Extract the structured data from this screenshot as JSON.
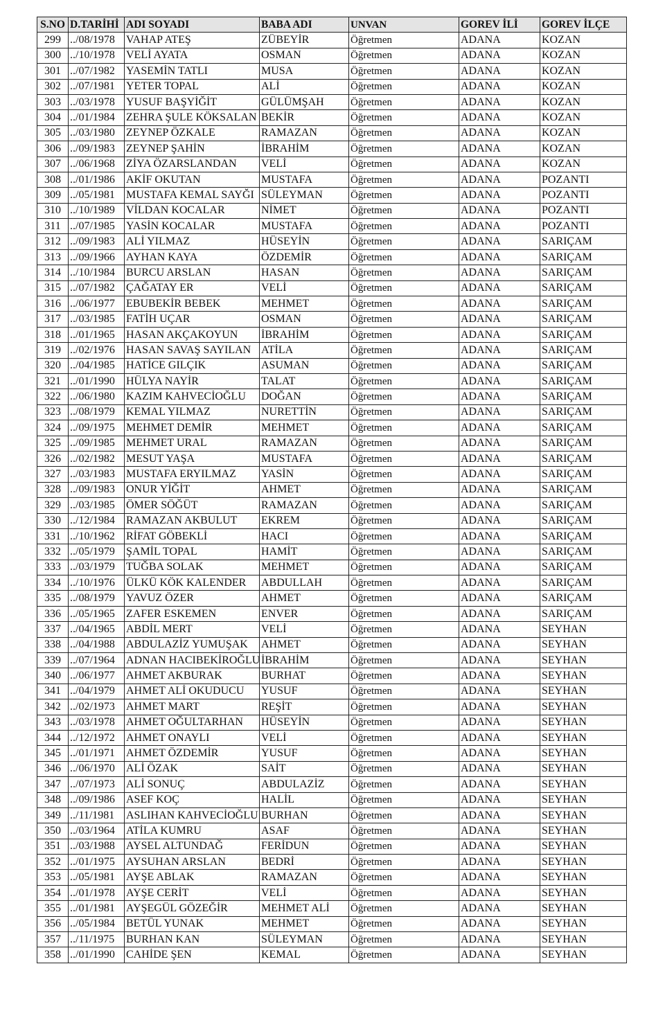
{
  "headers": [
    "S.NO",
    "D.TARİHİ",
    "ADI SOYADI",
    "BABA ADI",
    "UNVAN",
    "GOREV İLİ",
    "GOREV İLÇE"
  ],
  "rows": [
    [
      "299",
      "../08/1978",
      "VAHAP ATEŞ",
      "ZÜBEYİR",
      "Öğretmen",
      "ADANA",
      "KOZAN"
    ],
    [
      "300",
      "../10/1978",
      "VELİ AYATA",
      "OSMAN",
      "Öğretmen",
      "ADANA",
      "KOZAN"
    ],
    [
      "301",
      "../07/1982",
      "YASEMİN TATLI",
      "MUSA",
      "Öğretmen",
      "ADANA",
      "KOZAN"
    ],
    [
      "302",
      "../07/1981",
      "YETER TOPAL",
      "ALİ",
      "Öğretmen",
      "ADANA",
      "KOZAN"
    ],
    [
      "303",
      "../03/1978",
      "YUSUF BAŞYİĞİT",
      "GÜLÜMŞAH",
      "Öğretmen",
      "ADANA",
      "KOZAN"
    ],
    [
      "304",
      "../01/1984",
      "ZEHRA ŞULE KÖKSALAN",
      "BEKİR",
      "Öğretmen",
      "ADANA",
      "KOZAN"
    ],
    [
      "305",
      "../03/1980",
      "ZEYNEP ÖZKALE",
      "RAMAZAN",
      "Öğretmen",
      "ADANA",
      "KOZAN"
    ],
    [
      "306",
      "../09/1983",
      "ZEYNEP ŞAHİN",
      "İBRAHİM",
      "Öğretmen",
      "ADANA",
      "KOZAN"
    ],
    [
      "307",
      "../06/1968",
      "ZİYA ÖZARSLANDAN",
      "VELİ",
      "Öğretmen",
      "ADANA",
      "KOZAN"
    ],
    [
      "308",
      "../01/1986",
      "AKİF OKUTAN",
      "MUSTAFA",
      "Öğretmen",
      "ADANA",
      "POZANTI"
    ],
    [
      "309",
      "../05/1981",
      "MUSTAFA KEMAL SAYĞI",
      "SÜLEYMAN",
      "Öğretmen",
      "ADANA",
      "POZANTI"
    ],
    [
      "310",
      "../10/1989",
      "VİLDAN KOCALAR",
      "NİMET",
      "Öğretmen",
      "ADANA",
      "POZANTI"
    ],
    [
      "311",
      "../07/1985",
      "YASİN KOCALAR",
      "MUSTAFA",
      "Öğretmen",
      "ADANA",
      "POZANTI"
    ],
    [
      "312",
      "../09/1983",
      "ALİ YILMAZ",
      "HÜSEYİN",
      "Öğretmen",
      "ADANA",
      "SARIÇAM"
    ],
    [
      "313",
      "../09/1966",
      "AYHAN KAYA",
      "ÖZDEMİR",
      "Öğretmen",
      "ADANA",
      "SARIÇAM"
    ],
    [
      "314",
      "../10/1984",
      "BURCU ARSLAN",
      "HASAN",
      "Öğretmen",
      "ADANA",
      "SARIÇAM"
    ],
    [
      "315",
      "../07/1982",
      "ÇAĞATAY ER",
      "VELİ",
      "Öğretmen",
      "ADANA",
      "SARIÇAM"
    ],
    [
      "316",
      "../06/1977",
      "EBUBEKİR BEBEK",
      "MEHMET",
      "Öğretmen",
      "ADANA",
      "SARIÇAM"
    ],
    [
      "317",
      "../03/1985",
      "FATİH UÇAR",
      "OSMAN",
      "Öğretmen",
      "ADANA",
      "SARIÇAM"
    ],
    [
      "318",
      "../01/1965",
      "HASAN AKÇAKOYUN",
      "İBRAHİM",
      "Öğretmen",
      "ADANA",
      "SARIÇAM"
    ],
    [
      "319",
      "../02/1976",
      "HASAN SAVAŞ SAYILAN",
      "ATİLA",
      "Öğretmen",
      "ADANA",
      "SARIÇAM"
    ],
    [
      "320",
      "../04/1985",
      "HATİCE GILÇIK",
      "ASUMAN",
      "Öğretmen",
      "ADANA",
      "SARIÇAM"
    ],
    [
      "321",
      "../01/1990",
      "HÜLYA NAYİR",
      "TALAT",
      "Öğretmen",
      "ADANA",
      "SARIÇAM"
    ],
    [
      "322",
      "../06/1980",
      "KAZIM KAHVECİOĞLU",
      "DOĞAN",
      "Öğretmen",
      "ADANA",
      "SARIÇAM"
    ],
    [
      "323",
      "../08/1979",
      "KEMAL YILMAZ",
      "NURETTİN",
      "Öğretmen",
      "ADANA",
      "SARIÇAM"
    ],
    [
      "324",
      "../09/1975",
      "MEHMET DEMİR",
      "MEHMET",
      "Öğretmen",
      "ADANA",
      "SARIÇAM"
    ],
    [
      "325",
      "../09/1985",
      "MEHMET URAL",
      "RAMAZAN",
      "Öğretmen",
      "ADANA",
      "SARIÇAM"
    ],
    [
      "326",
      "../02/1982",
      "MESUT YAŞA",
      "MUSTAFA",
      "Öğretmen",
      "ADANA",
      "SARIÇAM"
    ],
    [
      "327",
      "../03/1983",
      "MUSTAFA ERYILMAZ",
      "YASİN",
      "Öğretmen",
      "ADANA",
      "SARIÇAM"
    ],
    [
      "328",
      "../09/1983",
      "ONUR YİĞİT",
      "AHMET",
      "Öğretmen",
      "ADANA",
      "SARIÇAM"
    ],
    [
      "329",
      "../03/1985",
      "ÖMER SÖĞÜT",
      "RAMAZAN",
      "Öğretmen",
      "ADANA",
      "SARIÇAM"
    ],
    [
      "330",
      "../12/1984",
      "RAMAZAN AKBULUT",
      "EKREM",
      "Öğretmen",
      "ADANA",
      "SARIÇAM"
    ],
    [
      "331",
      "../10/1962",
      "RİFAT GÖBEKLİ",
      "HACI",
      "Öğretmen",
      "ADANA",
      "SARIÇAM"
    ],
    [
      "332",
      "../05/1979",
      "ŞAMİL TOPAL",
      "HAMİT",
      "Öğretmen",
      "ADANA",
      "SARIÇAM"
    ],
    [
      "333",
      "../03/1979",
      "TUĞBA SOLAK",
      "MEHMET",
      "Öğretmen",
      "ADANA",
      "SARIÇAM"
    ],
    [
      "334",
      "../10/1976",
      "ÜLKÜ KÖK KALENDER",
      "ABDULLAH",
      "Öğretmen",
      "ADANA",
      "SARIÇAM"
    ],
    [
      "335",
      "../08/1979",
      "YAVUZ ÖZER",
      "AHMET",
      "Öğretmen",
      "ADANA",
      "SARIÇAM"
    ],
    [
      "336",
      "../05/1965",
      "ZAFER ESKEMEN",
      "ENVER",
      "Öğretmen",
      "ADANA",
      "SARIÇAM"
    ],
    [
      "337",
      "../04/1965",
      "ABDİL MERT",
      "VELİ",
      "Öğretmen",
      "ADANA",
      "SEYHAN"
    ],
    [
      "338",
      "../04/1988",
      "ABDULAZİZ YUMUŞAK",
      "AHMET",
      "Öğretmen",
      "ADANA",
      "SEYHAN"
    ],
    [
      "339",
      "../07/1964",
      "ADNAN HACIBEKİROĞLU",
      "İBRAHİM",
      "Öğretmen",
      "ADANA",
      "SEYHAN"
    ],
    [
      "340",
      "../06/1977",
      "AHMET AKBURAK",
      "BURHAT",
      "Öğretmen",
      "ADANA",
      "SEYHAN"
    ],
    [
      "341",
      "../04/1979",
      "AHMET ALİ OKUDUCU",
      "YUSUF",
      "Öğretmen",
      "ADANA",
      "SEYHAN"
    ],
    [
      "342",
      "../02/1973",
      "AHMET MART",
      "REŞİT",
      "Öğretmen",
      "ADANA",
      "SEYHAN"
    ],
    [
      "343",
      "../03/1978",
      "AHMET OĞULTARHAN",
      "HÜSEYİN",
      "Öğretmen",
      "ADANA",
      "SEYHAN"
    ],
    [
      "344",
      "../12/1972",
      "AHMET ONAYLI",
      "VELİ",
      "Öğretmen",
      "ADANA",
      "SEYHAN"
    ],
    [
      "345",
      "../01/1971",
      "AHMET ÖZDEMİR",
      "YUSUF",
      "Öğretmen",
      "ADANA",
      "SEYHAN"
    ],
    [
      "346",
      "../06/1970",
      "ALİ ÖZAK",
      "SAİT",
      "Öğretmen",
      "ADANA",
      "SEYHAN"
    ],
    [
      "347",
      "../07/1973",
      "ALİ SONUÇ",
      "ABDULAZİZ",
      "Öğretmen",
      "ADANA",
      "SEYHAN"
    ],
    [
      "348",
      "../09/1986",
      "ASEF KOÇ",
      "HALİL",
      "Öğretmen",
      "ADANA",
      "SEYHAN"
    ],
    [
      "349",
      "../11/1981",
      "ASLIHAN KAHVECİOĞLU",
      "BURHAN",
      "Öğretmen",
      "ADANA",
      "SEYHAN"
    ],
    [
      "350",
      "../03/1964",
      "ATİLA KUMRU",
      "ASAF",
      "Öğretmen",
      "ADANA",
      "SEYHAN"
    ],
    [
      "351",
      "../03/1988",
      "AYSEL ALTUNDAĞ",
      "FERİDUN",
      "Öğretmen",
      "ADANA",
      "SEYHAN"
    ],
    [
      "352",
      "../01/1975",
      "AYSUHAN ARSLAN",
      "BEDRİ",
      "Öğretmen",
      "ADANA",
      "SEYHAN"
    ],
    [
      "353",
      "../05/1981",
      "AYŞE ABLAK",
      "RAMAZAN",
      "Öğretmen",
      "ADANA",
      "SEYHAN"
    ],
    [
      "354",
      "../01/1978",
      "AYŞE CERİT",
      "VELİ",
      "Öğretmen",
      "ADANA",
      "SEYHAN"
    ],
    [
      "355",
      "../01/1981",
      "AYŞEGÜL GÖZEĞİR",
      "MEHMET ALİ",
      "Öğretmen",
      "ADANA",
      "SEYHAN"
    ],
    [
      "356",
      "../05/1984",
      "BETÜL YUNAK",
      "MEHMET",
      "Öğretmen",
      "ADANA",
      "SEYHAN"
    ],
    [
      "357",
      "../11/1975",
      "BURHAN KAN",
      "SÜLEYMAN",
      "Öğretmen",
      "ADANA",
      "SEYHAN"
    ],
    [
      "358",
      "../01/1990",
      "CAHİDE ŞEN",
      "KEMAL",
      "Öğretmen",
      "ADANA",
      "SEYHAN"
    ]
  ]
}
